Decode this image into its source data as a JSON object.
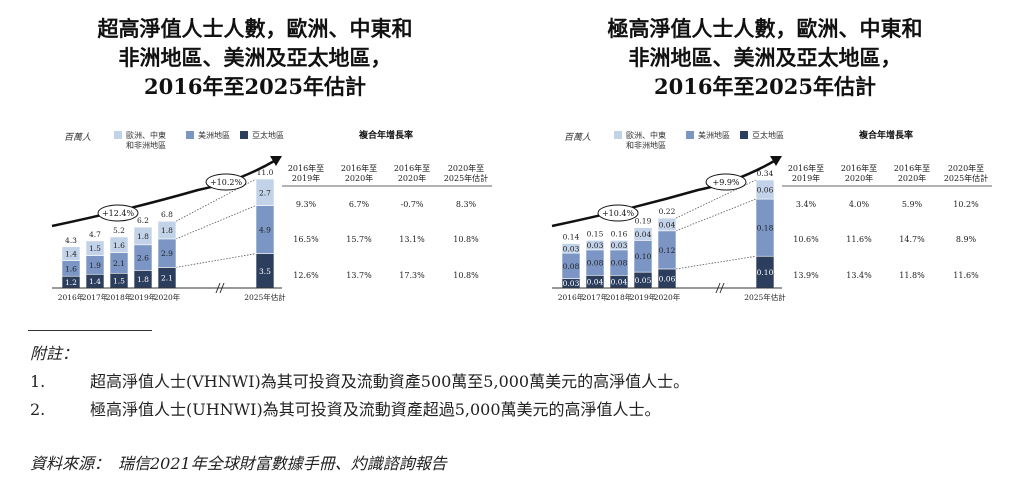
{
  "chart_data": [
    {
      "type": "bar",
      "stacked": true,
      "title": "超高淨值人士人數，歐洲、中東和\n非洲地區、美洲及亞太地區，\n2016年至2025年估計",
      "ylabel": "百萬人",
      "categories": [
        "2016年",
        "2017年",
        "2018年",
        "2019年",
        "2020年",
        "2025年估計"
      ],
      "series": [
        {
          "name": "亞太地區",
          "color": "#2c3e5e",
          "values": [
            1.2,
            1.4,
            1.5,
            1.8,
            2.1,
            3.5
          ],
          "labels": [
            "1.2",
            "1.4",
            "1.5",
            "1.8",
            "2.1",
            "3.5"
          ]
        },
        {
          "name": "美洲地區",
          "color": "#7b95c4",
          "values": [
            1.6,
            1.9,
            2.1,
            2.6,
            2.9,
            4.9
          ],
          "labels": [
            "1.6",
            "1.9",
            "2.1",
            "2.6",
            "2.9",
            "4.9"
          ]
        },
        {
          "name": "歐洲、中東和非洲地區",
          "color": "#c2d2e8",
          "values": [
            1.4,
            1.5,
            1.6,
            1.8,
            1.8,
            2.7
          ],
          "labels": [
            "1.4",
            "1.5",
            "1.6",
            "1.8",
            "1.8",
            "2.7"
          ]
        }
      ],
      "totals": [
        4.3,
        4.7,
        5.2,
        6.2,
        6.8,
        11.0
      ],
      "total_labels": [
        "4.3",
        "4.7",
        "5.2",
        "6.2",
        "6.8",
        "11.0"
      ],
      "growth_arrows": [
        "+12.4%",
        "+10.2%"
      ],
      "cagr_table": {
        "title": "複合年增長率",
        "headers": [
          "2016年至\n2019年",
          "2016年至\n2020年",
          "2016年至\n2020年",
          "2020年至\n2025年估計"
        ],
        "rows": [
          [
            "9.3%",
            "6.7%",
            "-0.7%",
            "8.3%"
          ],
          [
            "16.5%",
            "15.7%",
            "13.1%",
            "10.8%"
          ],
          [
            "12.6%",
            "13.7%",
            "17.3%",
            "10.8%"
          ]
        ]
      }
    },
    {
      "type": "bar",
      "stacked": true,
      "title": "極高淨值人士人數，歐洲、中東和\n非洲地區、美洲及亞太地區，\n2016年至2025年估計",
      "ylabel": "百萬人",
      "categories": [
        "2016年",
        "2017年",
        "2018年",
        "2019年",
        "2020年",
        "2025年估計"
      ],
      "series": [
        {
          "name": "亞太地區",
          "color": "#2c3e5e",
          "values": [
            0.03,
            0.04,
            0.04,
            0.05,
            0.06,
            0.1
          ],
          "labels": [
            "0.03",
            "0.04",
            "0.04",
            "0.05",
            "0.06",
            "0.10"
          ]
        },
        {
          "name": "美洲地區",
          "color": "#7b95c4",
          "values": [
            0.08,
            0.08,
            0.08,
            0.1,
            0.12,
            0.18
          ],
          "labels": [
            "0.08",
            "0.08",
            "0.08",
            "0.10",
            "0.12",
            "0.18"
          ]
        },
        {
          "name": "歐洲、中東和非洲地區",
          "color": "#c2d2e8",
          "values": [
            0.03,
            0.03,
            0.03,
            0.04,
            0.04,
            0.06
          ],
          "labels": [
            "0.03",
            "0.03",
            "0.03",
            "0.04",
            "0.04",
            "0.06"
          ]
        }
      ],
      "totals": [
        0.14,
        0.15,
        0.16,
        0.19,
        0.22,
        0.34
      ],
      "total_labels": [
        "0.14",
        "0.15",
        "0.16",
        "0.19",
        "0.22",
        "0.34"
      ],
      "growth_arrows": [
        "+10.4%",
        "+9.9%"
      ],
      "cagr_table": {
        "title": "複合年增長率",
        "headers": [
          "2016年至\n2019年",
          "2016年至\n2020年",
          "2016年至\n2020年",
          "2020年至\n2025年估計"
        ],
        "rows": [
          [
            "3.4%",
            "4.0%",
            "5.9%",
            "10.2%"
          ],
          [
            "10.6%",
            "11.6%",
            "14.7%",
            "8.9%"
          ],
          [
            "13.9%",
            "13.4%",
            "11.8%",
            "11.6%"
          ]
        ]
      }
    }
  ],
  "notes": {
    "header": "附註：",
    "items": [
      {
        "num": "1.",
        "text": "超高淨值人士(VHNWI)為其可投資及流動資產500萬至5,000萬美元的高淨值人士。"
      },
      {
        "num": "2.",
        "text": "極高淨值人士(UHNWI)為其可投資及流動資產超過5,000萬美元的高淨值人士。"
      }
    ]
  },
  "source": "資料來源：　瑞信2021年全球財富數據手冊、灼識諮詢報告"
}
